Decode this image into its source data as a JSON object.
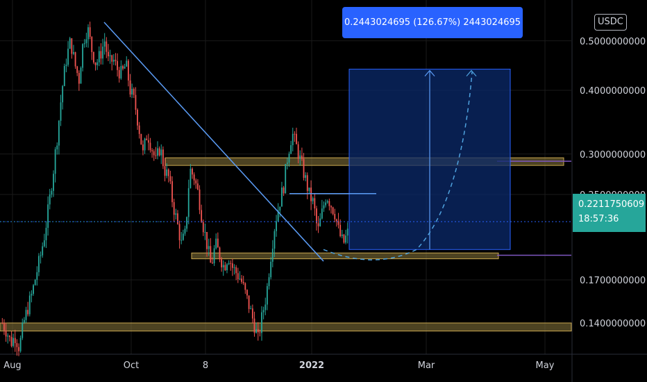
{
  "header": {
    "currency_label": "USDC"
  },
  "price_scale": {
    "ticks": [
      {
        "value": 0.5,
        "label": "0.5000000000"
      },
      {
        "value": 0.4,
        "label": "0.4000000000"
      },
      {
        "value": 0.3,
        "label": "0.3000000000"
      },
      {
        "value": 0.25,
        "label": "0.2500000000"
      },
      {
        "value": 0.17,
        "label": "0.1700000000"
      },
      {
        "value": 0.14,
        "label": "0.1400000000"
      }
    ]
  },
  "last_price": {
    "value": 0.2211750609,
    "label": "0.2211750609",
    "countdown": "18:57:36"
  },
  "measure_tool": {
    "label": "0.2443024695 (126.67%) 2443024695"
  },
  "chart_data": {
    "type": "candlestick",
    "log_scale": true,
    "x_axis_labels": [
      {
        "label": "Aug",
        "bold": false
      },
      {
        "label": "Oct",
        "bold": false
      },
      {
        "label": "8",
        "bold": false
      },
      {
        "label": "2022",
        "bold": true
      },
      {
        "label": "Mar",
        "bold": false
      },
      {
        "label": "May",
        "bold": false
      }
    ],
    "close_path": [
      0.14,
      0.135,
      0.128,
      0.132,
      0.125,
      0.14,
      0.15,
      0.16,
      0.175,
      0.19,
      0.21,
      0.24,
      0.28,
      0.33,
      0.4,
      0.46,
      0.5,
      0.45,
      0.42,
      0.5,
      0.53,
      0.48,
      0.45,
      0.47,
      0.5,
      0.45,
      0.46,
      0.44,
      0.43,
      0.45,
      0.4,
      0.38,
      0.34,
      0.3,
      0.33,
      0.31,
      0.29,
      0.31,
      0.28,
      0.27,
      0.24,
      0.22,
      0.2,
      0.21,
      0.28,
      0.27,
      0.25,
      0.22,
      0.2,
      0.18,
      0.2,
      0.19,
      0.18,
      0.19,
      0.18,
      0.175,
      0.17,
      0.16,
      0.15,
      0.14,
      0.13,
      0.145,
      0.16,
      0.19,
      0.22,
      0.24,
      0.26,
      0.3,
      0.33,
      0.31,
      0.29,
      0.27,
      0.25,
      0.24,
      0.21,
      0.23,
      0.25,
      0.24,
      0.23,
      0.21,
      0.2,
      0.21
    ],
    "levels": [
      {
        "name": "resistance-zone",
        "low": 0.285,
        "high": 0.295
      },
      {
        "name": "support-zone",
        "low": 0.187,
        "high": 0.192
      },
      {
        "name": "bottom-zone",
        "low": 0.135,
        "high": 0.14
      }
    ],
    "target": {
      "value": 0.44
    },
    "base": {
      "value": 0.195
    }
  },
  "colors": {
    "up": "#26a69a",
    "down": "#ef5350",
    "trendline": "#5b9cf6",
    "box_fill": "#0b2a6b",
    "zone": "#8d7a3e",
    "price_line": "#2962ff"
  }
}
